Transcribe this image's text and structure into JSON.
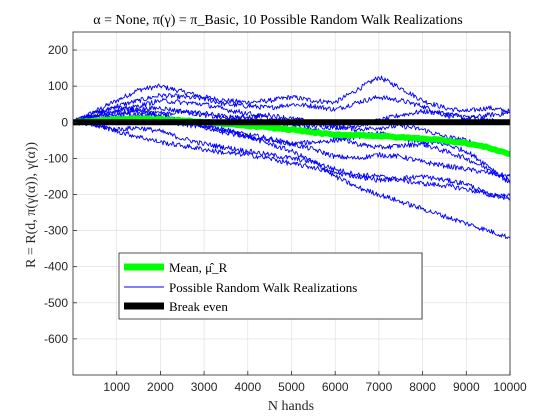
{
  "chart_data": {
    "type": "line",
    "title": "α = None, π(γ) = π_Basic, 10 Possible Random Walk Realizations",
    "xlabel": "N hands",
    "ylabel": "R = R(d, π(γ(α)), γ(α))",
    "xlim": [
      0,
      10000
    ],
    "ylim": [
      -700,
      250
    ],
    "xticks": [
      "1000",
      "2000",
      "3000",
      "4000",
      "5000",
      "6000",
      "7000",
      "8000",
      "9000",
      "10000"
    ],
    "yticks": [
      "200",
      "100",
      "0",
      "-100",
      "-200",
      "-300",
      "-400",
      "-500",
      "-600"
    ],
    "grid": true,
    "legend_position": "lower-left",
    "x": [
      0,
      500,
      1000,
      1500,
      2000,
      2500,
      3000,
      3500,
      4000,
      4500,
      5000,
      5500,
      6000,
      6500,
      7000,
      7500,
      8000,
      8500,
      9000,
      9500,
      10000
    ],
    "series": [
      {
        "name": "Mean, μ̂_R",
        "color": "#00ff00",
        "values": [
          0,
          5,
          8,
          10,
          8,
          5,
          0,
          -5,
          -10,
          -15,
          -20,
          -28,
          -35,
          -35,
          -38,
          -42,
          -45,
          -50,
          -58,
          -70,
          -88
        ]
      },
      {
        "name": "Possible Random Walk Realizations",
        "color": "#0000ff",
        "values": [
          0,
          30,
          60,
          90,
          100,
          85,
          70,
          60,
          55,
          60,
          70,
          60,
          55,
          90,
          125,
          95,
          60,
          40,
          30,
          40,
          30
        ]
      },
      {
        "color": "#0000ff",
        "values": [
          0,
          20,
          45,
          60,
          75,
          70,
          65,
          50,
          45,
          40,
          50,
          45,
          35,
          55,
          70,
          60,
          45,
          20,
          10,
          20,
          25
        ]
      },
      {
        "color": "#0000ff",
        "values": [
          0,
          15,
          30,
          25,
          20,
          30,
          25,
          15,
          10,
          0,
          -5,
          -10,
          -15,
          -10,
          5,
          20,
          30,
          25,
          15,
          5,
          0
        ]
      },
      {
        "color": "#0000ff",
        "values": [
          0,
          10,
          20,
          35,
          40,
          30,
          20,
          10,
          15,
          20,
          10,
          0,
          -10,
          -20,
          -15,
          -10,
          -20,
          -40,
          -50,
          -70,
          -90
        ]
      },
      {
        "color": "#0000ff",
        "values": [
          0,
          5,
          0,
          10,
          5,
          -5,
          -15,
          -25,
          -35,
          -45,
          -60,
          -75,
          -95,
          -100,
          -90,
          -95,
          -110,
          -120,
          -130,
          -140,
          -150
        ]
      },
      {
        "color": "#0000ff",
        "values": [
          0,
          25,
          40,
          35,
          20,
          0,
          -10,
          -30,
          -40,
          -50,
          -60,
          -55,
          -50,
          -40,
          -30,
          -45,
          -55,
          -60,
          -80,
          -120,
          -170
        ]
      },
      {
        "color": "#0000ff",
        "values": [
          0,
          -10,
          -20,
          -15,
          -25,
          -45,
          -60,
          -70,
          -80,
          -90,
          -100,
          -110,
          -130,
          -145,
          -150,
          -160,
          -170,
          -175,
          -185,
          -200,
          -205
        ]
      },
      {
        "color": "#0000ff",
        "values": [
          0,
          15,
          10,
          20,
          25,
          5,
          -10,
          -20,
          -40,
          -60,
          -80,
          -110,
          -150,
          -180,
          -200,
          -220,
          -240,
          -260,
          -280,
          -300,
          -320
        ]
      },
      {
        "color": "#0000ff",
        "values": [
          0,
          20,
          30,
          45,
          60,
          55,
          50,
          35,
          25,
          10,
          -5,
          -20,
          -40,
          -60,
          -70,
          -65,
          -60,
          -80,
          -100,
          -130,
          -160
        ]
      },
      {
        "color": "#0000ff",
        "values": [
          0,
          -5,
          -25,
          -40,
          -55,
          -65,
          -75,
          -85,
          -90,
          -100,
          -115,
          -125,
          -140,
          -150,
          -160,
          -155,
          -150,
          -160,
          -170,
          -200,
          -210
        ]
      },
      {
        "name": "Break even",
        "color": "#000000",
        "values": [
          0,
          0,
          0,
          0,
          0,
          0,
          0,
          0,
          0,
          0,
          0,
          0,
          0,
          0,
          0,
          0,
          0,
          0,
          0,
          0,
          0
        ]
      }
    ],
    "legend": [
      "Mean, μ̂_R",
      "Possible Random Walk Realizations",
      "Break even"
    ]
  }
}
